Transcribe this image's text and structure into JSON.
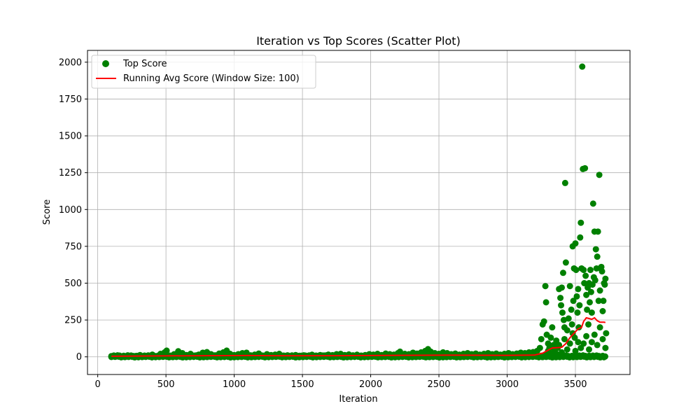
{
  "chart_data": {
    "type": "scatter",
    "title": "Iteration vs Top Scores (Scatter Plot)",
    "xlabel": "Iteration",
    "ylabel": "Score",
    "xlim": [
      -75,
      3900
    ],
    "ylim": [
      -120,
      2080
    ],
    "xticks": [
      0,
      500,
      1000,
      1500,
      2000,
      2500,
      3000,
      3500
    ],
    "yticks": [
      0,
      250,
      500,
      750,
      1000,
      1250,
      1500,
      1750,
      2000
    ],
    "grid": true,
    "legend_position": "upper-left",
    "legend": {
      "scatter_label": "Top Score",
      "line_label": "Running Avg Score (Window Size: 100)"
    },
    "colors": {
      "scatter": "#008000",
      "line": "#ff0000"
    },
    "series": [
      {
        "name": "Top Score",
        "type": "scatter",
        "points": [
          [
            100,
            5
          ],
          [
            130,
            2
          ],
          [
            160,
            8
          ],
          [
            190,
            4
          ],
          [
            220,
            10
          ],
          [
            250,
            3
          ],
          [
            280,
            6
          ],
          [
            310,
            12
          ],
          [
            340,
            2
          ],
          [
            370,
            9
          ],
          [
            400,
            15
          ],
          [
            430,
            4
          ],
          [
            460,
            20
          ],
          [
            490,
            30
          ],
          [
            505,
            42
          ],
          [
            530,
            8
          ],
          [
            560,
            18
          ],
          [
            590,
            38
          ],
          [
            620,
            25
          ],
          [
            650,
            12
          ],
          [
            680,
            20
          ],
          [
            710,
            8
          ],
          [
            740,
            15
          ],
          [
            770,
            28
          ],
          [
            800,
            32
          ],
          [
            830,
            18
          ],
          [
            860,
            10
          ],
          [
            890,
            22
          ],
          [
            920,
            30
          ],
          [
            945,
            42
          ],
          [
            970,
            20
          ],
          [
            1000,
            12
          ],
          [
            1030,
            18
          ],
          [
            1060,
            25
          ],
          [
            1090,
            28
          ],
          [
            1120,
            10
          ],
          [
            1150,
            15
          ],
          [
            1180,
            22
          ],
          [
            1210,
            8
          ],
          [
            1240,
            18
          ],
          [
            1270,
            12
          ],
          [
            1300,
            15
          ],
          [
            1330,
            20
          ],
          [
            1360,
            8
          ],
          [
            1390,
            10
          ],
          [
            1420,
            5
          ],
          [
            1450,
            12
          ],
          [
            1480,
            7
          ],
          [
            1510,
            10
          ],
          [
            1540,
            6
          ],
          [
            1570,
            14
          ],
          [
            1600,
            8
          ],
          [
            1630,
            12
          ],
          [
            1660,
            9
          ],
          [
            1690,
            15
          ],
          [
            1720,
            11
          ],
          [
            1750,
            18
          ],
          [
            1780,
            20
          ],
          [
            1810,
            12
          ],
          [
            1840,
            16
          ],
          [
            1870,
            10
          ],
          [
            1900,
            14
          ],
          [
            1930,
            8
          ],
          [
            1960,
            12
          ],
          [
            1990,
            18
          ],
          [
            2020,
            15
          ],
          [
            2050,
            20
          ],
          [
            2080,
            12
          ],
          [
            2110,
            22
          ],
          [
            2140,
            18
          ],
          [
            2170,
            15
          ],
          [
            2200,
            25
          ],
          [
            2215,
            35
          ],
          [
            2250,
            20
          ],
          [
            2280,
            18
          ],
          [
            2310,
            28
          ],
          [
            2340,
            22
          ],
          [
            2370,
            30
          ],
          [
            2400,
            40
          ],
          [
            2420,
            52
          ],
          [
            2440,
            35
          ],
          [
            2470,
            25
          ],
          [
            2500,
            20
          ],
          [
            2530,
            30
          ],
          [
            2560,
            25
          ],
          [
            2590,
            18
          ],
          [
            2620,
            22
          ],
          [
            2650,
            15
          ],
          [
            2680,
            20
          ],
          [
            2710,
            25
          ],
          [
            2740,
            18
          ],
          [
            2770,
            22
          ],
          [
            2800,
            15
          ],
          [
            2830,
            20
          ],
          [
            2860,
            25
          ],
          [
            2890,
            18
          ],
          [
            2920,
            22
          ],
          [
            2950,
            15
          ],
          [
            2980,
            20
          ],
          [
            3010,
            25
          ],
          [
            3040,
            18
          ],
          [
            3070,
            22
          ],
          [
            3100,
            28
          ],
          [
            3130,
            25
          ],
          [
            3160,
            30
          ],
          [
            3190,
            32
          ],
          [
            3220,
            40
          ],
          [
            3240,
            60
          ],
          [
            3250,
            120
          ],
          [
            3260,
            220
          ],
          [
            3270,
            240
          ],
          [
            3280,
            480
          ],
          [
            3285,
            370
          ],
          [
            3290,
            150
          ],
          [
            3300,
            90
          ],
          [
            3310,
            60
          ],
          [
            3320,
            130
          ],
          [
            3330,
            200
          ],
          [
            3340,
            80
          ],
          [
            3350,
            30
          ],
          [
            3360,
            110
          ],
          [
            3370,
            60
          ],
          [
            3380,
            460
          ],
          [
            3390,
            400
          ],
          [
            3395,
            350
          ],
          [
            3400,
            470
          ],
          [
            3405,
            300
          ],
          [
            3410,
            570
          ],
          [
            3415,
            250
          ],
          [
            3420,
            200
          ],
          [
            3425,
            1180
          ],
          [
            3430,
            640
          ],
          [
            3440,
            180
          ],
          [
            3450,
            260
          ],
          [
            3460,
            480
          ],
          [
            3470,
            320
          ],
          [
            3475,
            220
          ],
          [
            3480,
            750
          ],
          [
            3485,
            380
          ],
          [
            3490,
            600
          ],
          [
            3495,
            130
          ],
          [
            3500,
            770
          ],
          [
            3505,
            590
          ],
          [
            3510,
            410
          ],
          [
            3515,
            300
          ],
          [
            3520,
            460
          ],
          [
            3525,
            200
          ],
          [
            3530,
            350
          ],
          [
            3535,
            810
          ],
          [
            3540,
            910
          ],
          [
            3545,
            600
          ],
          [
            3550,
            1970
          ],
          [
            3555,
            1275
          ],
          [
            3560,
            590
          ],
          [
            3565,
            500
          ],
          [
            3570,
            1280
          ],
          [
            3575,
            550
          ],
          [
            3580,
            420
          ],
          [
            3585,
            320
          ],
          [
            3590,
            470
          ],
          [
            3595,
            220
          ],
          [
            3600,
            500
          ],
          [
            3605,
            370
          ],
          [
            3610,
            590
          ],
          [
            3615,
            440
          ],
          [
            3620,
            300
          ],
          [
            3625,
            490
          ],
          [
            3630,
            1040
          ],
          [
            3635,
            540
          ],
          [
            3640,
            850
          ],
          [
            3645,
            520
          ],
          [
            3650,
            730
          ],
          [
            3655,
            600
          ],
          [
            3660,
            680
          ],
          [
            3665,
            850
          ],
          [
            3670,
            380
          ],
          [
            3675,
            1235
          ],
          [
            3680,
            450
          ],
          [
            3685,
            600
          ],
          [
            3690,
            610
          ],
          [
            3695,
            580
          ],
          [
            3700,
            310
          ],
          [
            3705,
            380
          ],
          [
            3710,
            500
          ],
          [
            3715,
            490
          ],
          [
            3720,
            530
          ],
          [
            3725,
            160
          ],
          [
            3600,
            50
          ],
          [
            3620,
            100
          ],
          [
            3640,
            150
          ],
          [
            3660,
            80
          ],
          [
            3680,
            200
          ],
          [
            3700,
            120
          ],
          [
            3720,
            60
          ],
          [
            3560,
            90
          ],
          [
            3580,
            140
          ],
          [
            3540,
            60
          ],
          [
            3520,
            100
          ],
          [
            3500,
            40
          ],
          [
            3480,
            160
          ],
          [
            3460,
            90
          ],
          [
            3440,
            50
          ],
          [
            3420,
            120
          ],
          [
            3400,
            30
          ],
          [
            3380,
            80
          ],
          [
            3360,
            20
          ],
          [
            3340,
            50
          ],
          [
            3320,
            25
          ],
          [
            3300,
            40
          ],
          [
            3280,
            15
          ]
        ]
      },
      {
        "name": "Running Avg Score (Window Size: 100)",
        "type": "line",
        "points": [
          [
            100,
            4
          ],
          [
            400,
            6
          ],
          [
            800,
            8
          ],
          [
            1100,
            9
          ],
          [
            1400,
            7
          ],
          [
            1800,
            8
          ],
          [
            2200,
            10
          ],
          [
            2600,
            11
          ],
          [
            3000,
            10
          ],
          [
            3200,
            12
          ],
          [
            3260,
            25
          ],
          [
            3300,
            45
          ],
          [
            3330,
            60
          ],
          [
            3360,
            62
          ],
          [
            3400,
            65
          ],
          [
            3430,
            90
          ],
          [
            3460,
            130
          ],
          [
            3490,
            160
          ],
          [
            3520,
            190
          ],
          [
            3545,
            200
          ],
          [
            3560,
            240
          ],
          [
            3580,
            265
          ],
          [
            3600,
            260
          ],
          [
            3620,
            255
          ],
          [
            3640,
            265
          ],
          [
            3660,
            245
          ],
          [
            3680,
            235
          ],
          [
            3710,
            235
          ],
          [
            3720,
            233
          ]
        ]
      }
    ]
  }
}
